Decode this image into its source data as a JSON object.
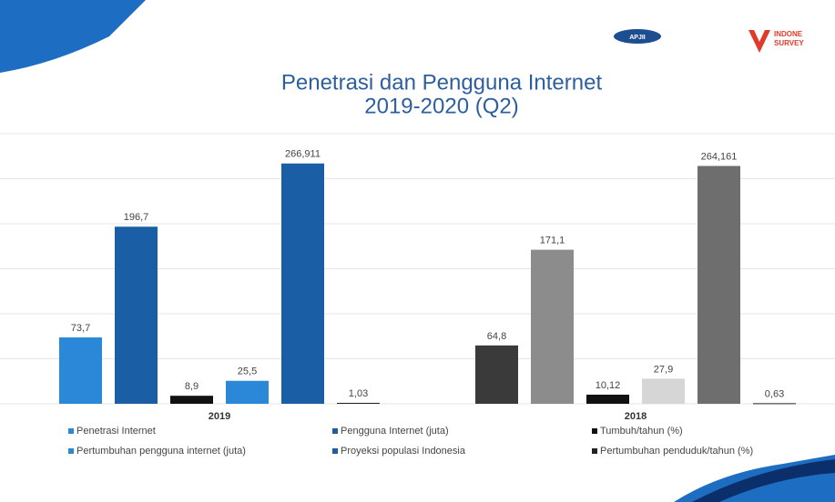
{
  "header": {
    "logo_left": "APJII",
    "logo_right_line1": "INDONE",
    "logo_right_line2": "SURVEY"
  },
  "chart_data": {
    "type": "bar",
    "title": "Penetrasi dan Pengguna Internet",
    "subtitle": "2019-2020 (Q2)",
    "categories": [
      "2019",
      "2018"
    ],
    "ylim": [
      0,
      300
    ],
    "grid": true,
    "series": [
      {
        "name": "Penetrasi Internet",
        "colors": [
          "#2b87d8",
          "#3a3a3a"
        ],
        "values": [
          73.7,
          64.8
        ],
        "value_labels": [
          "73,7",
          "64,8"
        ]
      },
      {
        "name": "Pengguna Internet (juta)",
        "colors": [
          "#1a5ea6",
          "#8c8c8c"
        ],
        "values": [
          196.7,
          171.1
        ],
        "value_labels": [
          "196,7",
          "171,1"
        ]
      },
      {
        "name": "Tumbuh/tahun (%)",
        "colors": [
          "#111111",
          "#111111"
        ],
        "values": [
          8.9,
          10.12
        ],
        "value_labels": [
          "8,9",
          "10,12"
        ]
      },
      {
        "name": "Pertumbuhan pengguna internet (juta)",
        "colors": [
          "#2b87d8",
          "#d6d6d6"
        ],
        "values": [
          25.5,
          27.9
        ],
        "value_labels": [
          "25,5",
          "27,9"
        ]
      },
      {
        "name": "Proyeksi populasi Indonesia",
        "colors": [
          "#1a5ea6",
          "#6e6e6e"
        ],
        "values": [
          266.911,
          264.161
        ],
        "value_labels": [
          "266,911",
          "264,161"
        ]
      },
      {
        "name": "Pertumbuhan penduduk/tahun (%)",
        "colors": [
          "#222222",
          "#222222"
        ],
        "values": [
          1.03,
          0.63
        ],
        "value_labels": [
          "1,03",
          "0,63"
        ]
      }
    ]
  }
}
